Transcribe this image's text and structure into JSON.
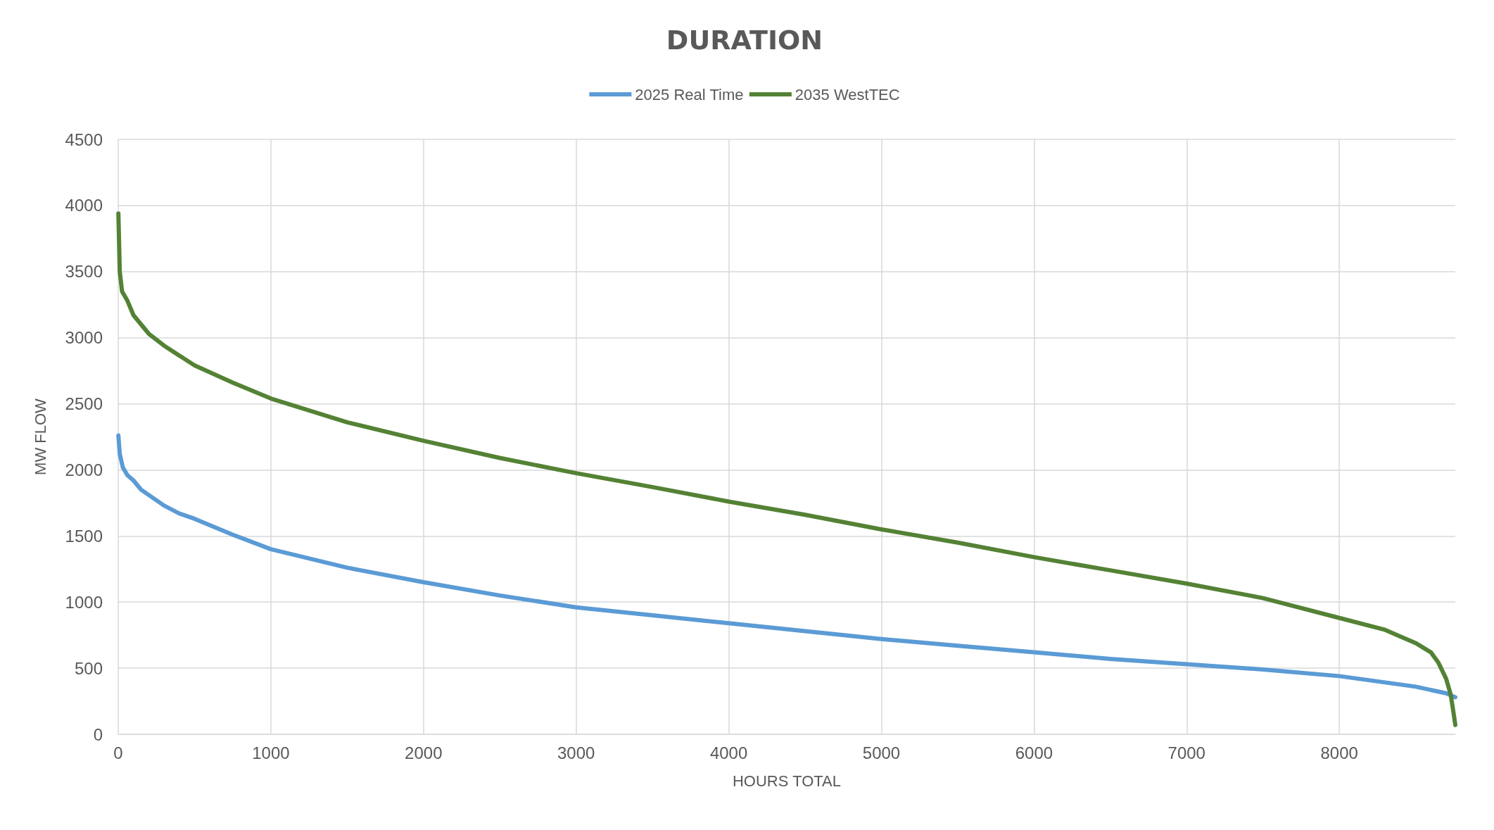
{
  "chart_data": {
    "type": "line",
    "title": "DURATION",
    "xlabel": "HOURS TOTAL",
    "ylabel": "MW FLOW",
    "xlim": [
      0,
      8760
    ],
    "xticks": [
      0,
      1000,
      2000,
      3000,
      4000,
      5000,
      6000,
      7000,
      8000
    ],
    "ylim": [
      0,
      4500
    ],
    "yticks": [
      0,
      500,
      1000,
      1500,
      2000,
      2500,
      3000,
      3500,
      4000,
      4500
    ],
    "grid": true,
    "legend": "top",
    "marker": "none",
    "line_style": "solid",
    "series": [
      {
        "name": "2025 Real Time",
        "color": "#5b9bd5",
        "x": [
          1,
          10,
          30,
          60,
          100,
          150,
          200,
          300,
          400,
          500,
          750,
          1000,
          1500,
          2000,
          2500,
          3000,
          3500,
          4000,
          4500,
          5000,
          5500,
          6000,
          6500,
          7000,
          7500,
          8000,
          8500,
          8700,
          8760
        ],
        "values": [
          2260,
          2120,
          2020,
          1960,
          1920,
          1850,
          1810,
          1730,
          1670,
          1630,
          1510,
          1400,
          1260,
          1150,
          1050,
          960,
          900,
          840,
          780,
          720,
          670,
          620,
          570,
          530,
          490,
          440,
          360,
          310,
          280
        ]
      },
      {
        "name": "2035 WestTEC",
        "color": "#548235",
        "x": [
          1,
          10,
          25,
          60,
          100,
          200,
          300,
          500,
          750,
          1000,
          1500,
          2000,
          2500,
          3000,
          3500,
          4000,
          4500,
          5000,
          5500,
          6000,
          6500,
          7000,
          7500,
          8000,
          8300,
          8500,
          8600,
          8650,
          8700,
          8730,
          8750,
          8760
        ],
        "values": [
          3940,
          3500,
          3350,
          3280,
          3170,
          3030,
          2940,
          2790,
          2660,
          2540,
          2360,
          2220,
          2090,
          1975,
          1870,
          1760,
          1660,
          1550,
          1450,
          1340,
          1240,
          1140,
          1030,
          880,
          790,
          690,
          620,
          540,
          420,
          300,
          150,
          70
        ]
      }
    ]
  }
}
